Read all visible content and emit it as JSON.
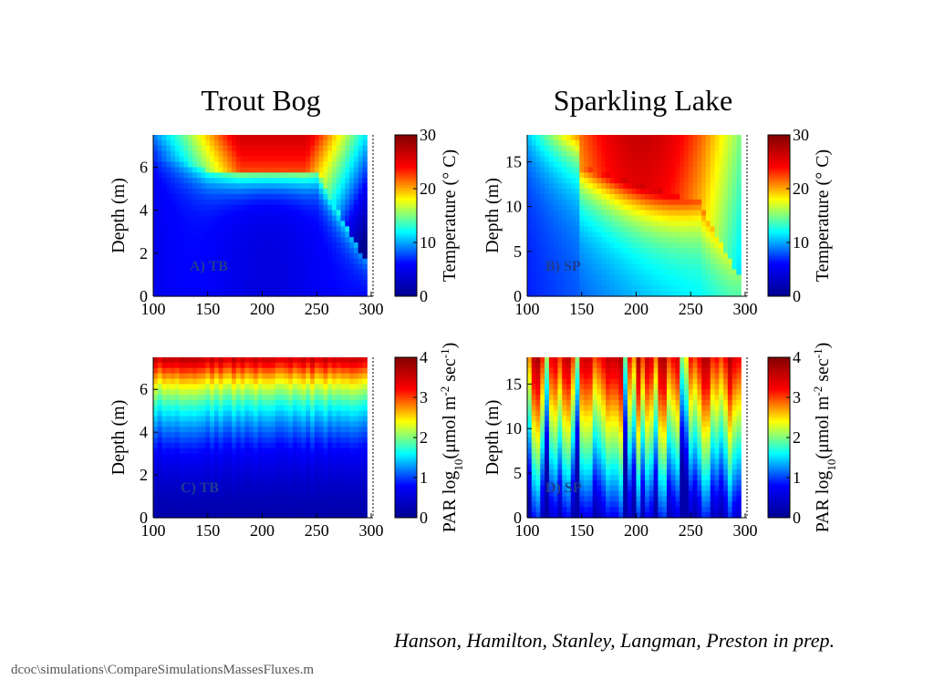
{
  "titles": {
    "left": "Trout Bog",
    "right": "Sparkling Lake"
  },
  "citation": "Hanson, Hamilton, Stanley, Langman, Preston in prep.",
  "file_path": "dcoc\\simulations\\CompareSimulationsMassesFluxes.m",
  "colormap": [
    "#00008f",
    "#0000ff",
    "#00ffff",
    "#ffff00",
    "#ff0000",
    "#800000"
  ],
  "chart_data": [
    {
      "id": "A",
      "type": "heatmap",
      "label": "A) TB",
      "lake": "TB",
      "variable": "temperature",
      "ylabel": "Depth (m)",
      "colorbar_label": "Temperature (° C)",
      "x_ticks": [
        "100",
        "150",
        "200",
        "250",
        "300"
      ],
      "y_ticks": [
        "0",
        "2",
        "4",
        "6"
      ],
      "colorbar_ticks": [
        "0",
        "10",
        "20",
        "30"
      ],
      "xlim": [
        100,
        300
      ],
      "ylim": [
        0,
        7.5
      ],
      "clim": [
        0,
        30
      ]
    },
    {
      "id": "B",
      "type": "heatmap",
      "label": "B) SP",
      "lake": "SP",
      "variable": "temperature",
      "ylabel": "Depth (m)",
      "colorbar_label": "Temperature (° C)",
      "x_ticks": [
        "100",
        "150",
        "200",
        "250",
        "300"
      ],
      "y_ticks": [
        "0",
        "5",
        "10",
        "15"
      ],
      "colorbar_ticks": [
        "0",
        "10",
        "20",
        "30"
      ],
      "xlim": [
        100,
        300
      ],
      "ylim": [
        0,
        18
      ],
      "clim": [
        0,
        30
      ]
    },
    {
      "id": "C",
      "type": "heatmap",
      "label": "C) TB",
      "lake": "TB",
      "variable": "par",
      "ylabel": "Depth (m)",
      "colorbar_label_parts": [
        "PAR log",
        "10",
        "(μmol m",
        "-2",
        " sec",
        "-1",
        ")"
      ],
      "x_ticks": [
        "100",
        "150",
        "200",
        "250",
        "300"
      ],
      "y_ticks": [
        "0",
        "2",
        "4",
        "6"
      ],
      "colorbar_ticks": [
        "0",
        "1",
        "2",
        "3",
        "4"
      ],
      "xlim": [
        100,
        300
      ],
      "ylim": [
        0,
        7.5
      ],
      "clim": [
        0,
        4
      ]
    },
    {
      "id": "D",
      "type": "heatmap",
      "label": "D) SP",
      "lake": "SP",
      "variable": "par",
      "ylabel": "Depth (m)",
      "colorbar_label_parts": [
        "PAR log",
        "10",
        "(μmol m",
        "-2",
        " sec",
        "-1",
        ")"
      ],
      "x_ticks": [
        "100",
        "150",
        "200",
        "250",
        "300"
      ],
      "y_ticks": [
        "0",
        "5",
        "10",
        "15"
      ],
      "colorbar_ticks": [
        "0",
        "1",
        "2",
        "3",
        "4"
      ],
      "xlim": [
        100,
        300
      ],
      "ylim": [
        0,
        18
      ],
      "clim": [
        0,
        4
      ]
    }
  ]
}
